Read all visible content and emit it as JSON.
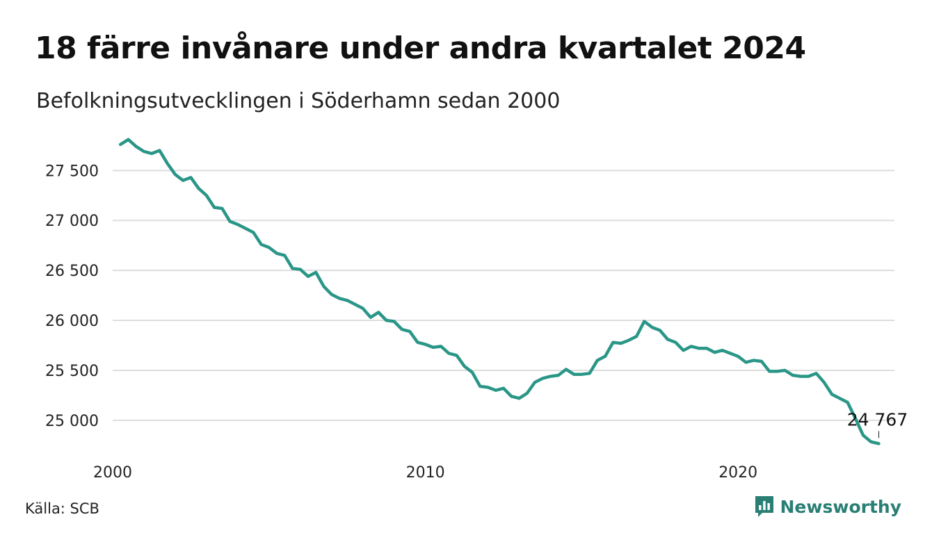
{
  "title": "18 färre invånare under andra kvartalet 2024",
  "subtitle": "Befolkningsutvecklingen i Söderhamn sedan 2000",
  "source": "Källa: SCB",
  "brand": {
    "name": "Newsworthy",
    "icon": "newsworthy-logo-icon",
    "color": "#2a7f74"
  },
  "chart_data": {
    "type": "line",
    "title": "18 färre invånare under andra kvartalet 2024",
    "subtitle": "Befolkningsutvecklingen i Söderhamn sedan 2000",
    "xlabel": "",
    "ylabel": "",
    "x_ticks": [
      2000,
      2010,
      2020
    ],
    "x_tick_labels": [
      "2000",
      "2010",
      "2020"
    ],
    "y_ticks": [
      25000,
      25500,
      26000,
      26500,
      27000,
      27500
    ],
    "y_tick_labels": [
      "25 000",
      "25 500",
      "26 000",
      "26 500",
      "27 000",
      "27 500"
    ],
    "xlim": [
      2000,
      2025
    ],
    "ylim": [
      24700,
      27850
    ],
    "grid": true,
    "line_color": "#2a9687",
    "last_value_label": "24 767",
    "series": [
      {
        "name": "",
        "x": [
          2000.25,
          2000.5,
          2000.75,
          2001.0,
          2001.25,
          2001.5,
          2001.75,
          2002.0,
          2002.25,
          2002.5,
          2002.75,
          2003.0,
          2003.25,
          2003.5,
          2003.75,
          2004.0,
          2004.25,
          2004.5,
          2004.75,
          2005.0,
          2005.25,
          2005.5,
          2005.75,
          2006.0,
          2006.25,
          2006.5,
          2006.75,
          2007.0,
          2007.25,
          2007.5,
          2007.75,
          2008.0,
          2008.25,
          2008.5,
          2008.75,
          2009.0,
          2009.25,
          2009.5,
          2009.75,
          2010.0,
          2010.25,
          2010.5,
          2010.75,
          2011.0,
          2011.25,
          2011.5,
          2011.75,
          2012.0,
          2012.25,
          2012.5,
          2012.75,
          2013.0,
          2013.25,
          2013.5,
          2013.75,
          2014.0,
          2014.25,
          2014.5,
          2014.75,
          2015.0,
          2015.25,
          2015.5,
          2015.75,
          2016.0,
          2016.25,
          2016.5,
          2016.75,
          2017.0,
          2017.25,
          2017.5,
          2017.75,
          2018.0,
          2018.25,
          2018.5,
          2018.75,
          2019.0,
          2019.25,
          2019.5,
          2019.75,
          2020.0,
          2020.25,
          2020.5,
          2020.75,
          2021.0,
          2021.25,
          2021.5,
          2021.75,
          2022.0,
          2022.25,
          2022.5,
          2022.75,
          2023.0,
          2023.25,
          2023.5,
          2023.75,
          2024.0,
          2024.25,
          2024.5
        ],
        "values": [
          27760,
          27810,
          27740,
          27690,
          27670,
          27700,
          27570,
          27460,
          27400,
          27430,
          27320,
          27250,
          27130,
          27120,
          26990,
          26960,
          26920,
          26880,
          26760,
          26730,
          26670,
          26650,
          26520,
          26510,
          26440,
          26480,
          26340,
          26260,
          26220,
          26200,
          26160,
          26120,
          26030,
          26080,
          26000,
          25990,
          25910,
          25890,
          25780,
          25760,
          25730,
          25740,
          25670,
          25650,
          25540,
          25480,
          25340,
          25330,
          25300,
          25320,
          25240,
          25220,
          25270,
          25380,
          25420,
          25440,
          25450,
          25510,
          25460,
          25460,
          25470,
          25600,
          25640,
          25780,
          25770,
          25800,
          25840,
          25990,
          25930,
          25900,
          25810,
          25780,
          25700,
          25740,
          25720,
          25720,
          25680,
          25700,
          25670,
          25640,
          25580,
          25600,
          25590,
          25490,
          25490,
          25500,
          25450,
          25440,
          25440,
          25470,
          25380,
          25260,
          25220,
          25180,
          25020,
          24850,
          24785,
          24767
        ]
      }
    ]
  }
}
